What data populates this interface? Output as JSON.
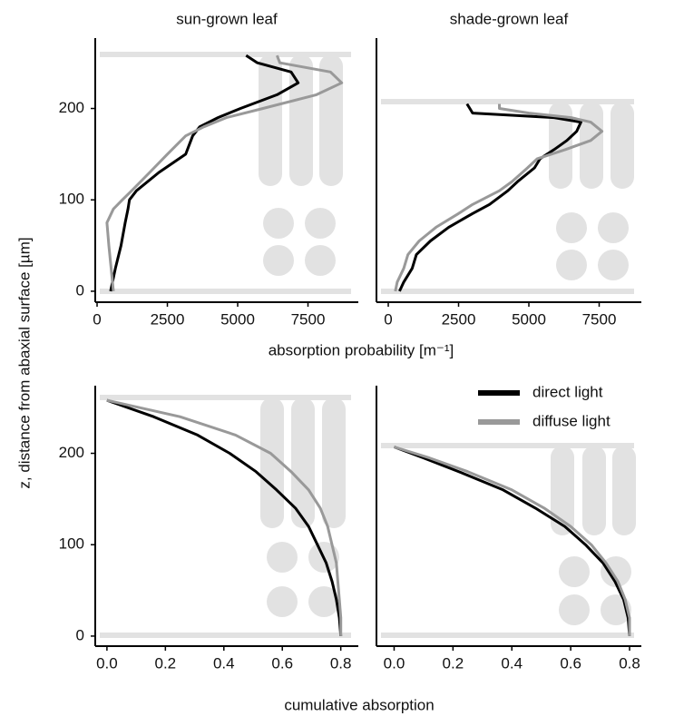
{
  "ylabel": "z, distance from abaxial surface [µm]",
  "xlabel_top": "absorption probability [m⁻¹]",
  "xlabel_bottom": "cumulative absorption",
  "chart_data": [
    {
      "type": "line",
      "title": "sun-grown leaf",
      "y": [
        0,
        25,
        50,
        75,
        90,
        100,
        110,
        130,
        150,
        170,
        180,
        190,
        200,
        215,
        228,
        240,
        250,
        258
      ],
      "series": [
        {
          "name": "direct light",
          "color": "#000000",
          "values": [
            480,
            650,
            850,
            1000,
            1100,
            1150,
            1400,
            2200,
            3150,
            3400,
            3650,
            4300,
            5100,
            6400,
            7150,
            6900,
            5700,
            5300
          ]
        },
        {
          "name": "diffuse light",
          "color": "#999999",
          "values": [
            580,
            500,
            420,
            350,
            580,
            900,
            1230,
            1870,
            2500,
            3150,
            3800,
            4600,
            5900,
            7800,
            8700,
            8300,
            6500,
            6400
          ]
        }
      ],
      "xlim": [
        -65,
        9290
      ],
      "ylim": [
        -12,
        277
      ],
      "xticks": [
        0,
        2500,
        5000,
        7500
      ],
      "yticks": [
        0,
        100,
        200
      ]
    },
    {
      "type": "line",
      "title": "shade-grown leaf",
      "y": [
        0,
        10,
        25,
        40,
        55,
        70,
        85,
        95,
        110,
        120,
        135,
        145,
        155,
        165,
        175,
        185,
        190,
        195,
        200,
        205
      ],
      "series": [
        {
          "name": "direct light",
          "color": "#000000",
          "values": [
            400,
            550,
            850,
            1000,
            1500,
            2150,
            3000,
            3600,
            4250,
            4600,
            5200,
            5400,
            5900,
            6350,
            6700,
            6850,
            5900,
            3000,
            2900,
            2800
          ]
        },
        {
          "name": "diffuse light",
          "color": "#999999",
          "values": [
            250,
            320,
            550,
            700,
            1100,
            1700,
            2500,
            3000,
            3950,
            4400,
            4950,
            5300,
            6300,
            7200,
            7600,
            7200,
            6500,
            5000,
            3950,
            3950
          ]
        }
      ],
      "xlim": [
        -420,
        9000
      ],
      "ylim": [
        -12,
        277
      ],
      "xticks": [
        0,
        2500,
        5000,
        7500
      ]
    },
    {
      "type": "line",
      "y": [
        0,
        20,
        40,
        60,
        80,
        100,
        120,
        140,
        160,
        180,
        200,
        220,
        240,
        258
      ],
      "series": [
        {
          "name": "direct light",
          "color": "#000000",
          "values": [
            0.8,
            0.795,
            0.785,
            0.77,
            0.75,
            0.72,
            0.69,
            0.645,
            0.58,
            0.51,
            0.42,
            0.31,
            0.16,
            0.0
          ]
        },
        {
          "name": "diffuse light",
          "color": "#999999",
          "values": [
            0.8,
            0.8,
            0.795,
            0.79,
            0.785,
            0.77,
            0.755,
            0.73,
            0.69,
            0.63,
            0.56,
            0.44,
            0.25,
            0.0
          ]
        }
      ],
      "xlim": [
        -0.04,
        0.86
      ],
      "ylim": [
        -11,
        274
      ],
      "xticks": [
        {
          "value": 0,
          "label": "0.0"
        },
        {
          "value": 0.2,
          "label": "0.2"
        },
        {
          "value": 0.4,
          "label": "0.4"
        },
        {
          "value": 0.6,
          "label": "0.6"
        },
        {
          "value": 0.8,
          "label": "0.8"
        }
      ],
      "yticks": [
        0,
        100,
        200
      ]
    },
    {
      "type": "line",
      "y": [
        0,
        20,
        40,
        60,
        80,
        100,
        120,
        140,
        160,
        180,
        195,
        207
      ],
      "series": [
        {
          "name": "direct light",
          "color": "#000000",
          "values": [
            0.8,
            0.795,
            0.78,
            0.75,
            0.71,
            0.65,
            0.58,
            0.48,
            0.37,
            0.22,
            0.1,
            0.0
          ]
        },
        {
          "name": "diffuse light",
          "color": "#999999",
          "values": [
            0.8,
            0.8,
            0.785,
            0.76,
            0.72,
            0.67,
            0.6,
            0.51,
            0.4,
            0.25,
            0.12,
            0.0
          ]
        }
      ],
      "xlim": [
        -0.06,
        0.84
      ],
      "ylim": [
        -11,
        274
      ],
      "xticks": [
        {
          "value": 0,
          "label": "0.0"
        },
        {
          "value": 0.2,
          "label": "0.2"
        },
        {
          "value": 0.4,
          "label": "0.4"
        },
        {
          "value": 0.6,
          "label": "0.6"
        },
        {
          "value": 0.8,
          "label": "0.8"
        }
      ],
      "legend": "top-right"
    }
  ]
}
